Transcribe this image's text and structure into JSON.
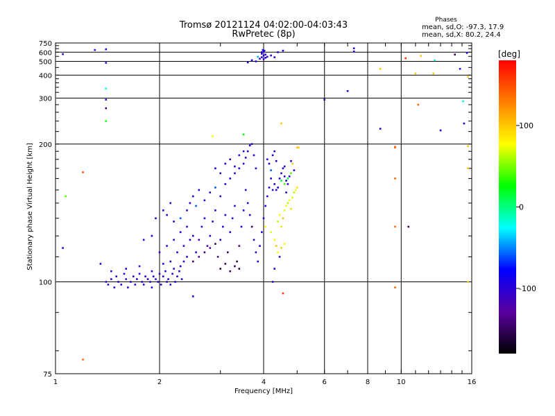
{
  "chart_data": {
    "type": "scatter",
    "title": "Tromsø 20121124 04:02:00-04:03:43",
    "subtitle": "RwPretec (8p)",
    "xlabel": "Frequency [MHz]",
    "ylabel": "Stationary phase Virtual Height [km]",
    "x_scale": "log",
    "y_scale": "reciprocal",
    "xlim": [
      1,
      16
    ],
    "ylim": [
      75,
      750
    ],
    "x_ticks": [
      1,
      2,
      4,
      6,
      8,
      10,
      16
    ],
    "y_ticks": [
      75,
      100,
      200,
      300,
      400,
      500,
      600,
      750
    ],
    "grid": true,
    "legend": {
      "title": "Phases",
      "lines": [
        "mean, sd,O: -97.3, 17.9",
        "mean, sd,X: 80.2, 24.4"
      ],
      "placement": "top-right"
    },
    "colorbar": {
      "label": "[deg]",
      "range": [
        -180,
        180
      ],
      "ticks": [
        100,
        0,
        -100
      ],
      "colors": [
        "#000000",
        "#5a00a0",
        "#0000ff",
        "#00ffff",
        "#00ff00",
        "#ffff00",
        "#ff8000",
        "#ff0000"
      ]
    },
    "points": [
      {
        "f": 1.4,
        "h": 100,
        "p": -110
      },
      {
        "f": 1.42,
        "h": 99,
        "p": -100
      },
      {
        "f": 1.45,
        "h": 101,
        "p": -105
      },
      {
        "f": 1.48,
        "h": 98,
        "p": -95
      },
      {
        "f": 1.5,
        "h": 102,
        "p": -100
      },
      {
        "f": 1.52,
        "h": 100,
        "p": -110
      },
      {
        "f": 1.55,
        "h": 99,
        "p": -90
      },
      {
        "f": 1.58,
        "h": 103,
        "p": -100
      },
      {
        "f": 1.6,
        "h": 101,
        "p": -105
      },
      {
        "f": 1.62,
        "h": 98,
        "p": -100
      },
      {
        "f": 1.65,
        "h": 100,
        "p": -95
      },
      {
        "f": 1.68,
        "h": 102,
        "p": -110
      },
      {
        "f": 1.7,
        "h": 99,
        "p": -100
      },
      {
        "f": 1.72,
        "h": 101,
        "p": -90
      },
      {
        "f": 1.75,
        "h": 103,
        "p": -100
      },
      {
        "f": 1.78,
        "h": 100,
        "p": -105
      },
      {
        "f": 1.8,
        "h": 99,
        "p": -100
      },
      {
        "f": 1.82,
        "h": 102,
        "p": -95
      },
      {
        "f": 1.85,
        "h": 101,
        "p": -110
      },
      {
        "f": 1.88,
        "h": 100,
        "p": -100
      },
      {
        "f": 1.9,
        "h": 98,
        "p": -95
      },
      {
        "f": 1.92,
        "h": 102,
        "p": -100
      },
      {
        "f": 1.95,
        "h": 101,
        "p": -105
      },
      {
        "f": 1.98,
        "h": 100,
        "p": -100
      },
      {
        "f": 2.0,
        "h": 103,
        "p": -110
      },
      {
        "f": 2.02,
        "h": 99,
        "p": -100
      },
      {
        "f": 2.05,
        "h": 102,
        "p": -95
      },
      {
        "f": 2.08,
        "h": 104,
        "p": -100
      },
      {
        "f": 2.1,
        "h": 100,
        "p": -105
      },
      {
        "f": 2.12,
        "h": 101,
        "p": -100
      },
      {
        "f": 2.15,
        "h": 99,
        "p": -90
      },
      {
        "f": 2.18,
        "h": 103,
        "p": -100
      },
      {
        "f": 2.2,
        "h": 105,
        "p": -105
      },
      {
        "f": 2.22,
        "h": 100,
        "p": -100
      },
      {
        "f": 2.25,
        "h": 102,
        "p": -110
      },
      {
        "f": 2.28,
        "h": 104,
        "p": -100
      },
      {
        "f": 2.3,
        "h": 106,
        "p": -95
      },
      {
        "f": 2.32,
        "h": 101,
        "p": -100
      },
      {
        "f": 2.35,
        "h": 108,
        "p": -105
      },
      {
        "f": 2.4,
        "h": 110,
        "p": -100
      },
      {
        "f": 1.45,
        "h": 104,
        "p": -100
      },
      {
        "f": 1.6,
        "h": 105,
        "p": -95
      },
      {
        "f": 1.75,
        "h": 106,
        "p": -105
      },
      {
        "f": 1.9,
        "h": 104,
        "p": -100
      },
      {
        "f": 2.05,
        "h": 107,
        "p": -90
      },
      {
        "f": 2.15,
        "h": 108,
        "p": -100
      },
      {
        "f": 2.25,
        "h": 112,
        "p": -105
      },
      {
        "f": 2.35,
        "h": 115,
        "p": -100
      },
      {
        "f": 2.45,
        "h": 118,
        "p": -95
      },
      {
        "f": 2.5,
        "h": 120,
        "p": -100
      },
      {
        "f": 2.0,
        "h": 112,
        "p": -110
      },
      {
        "f": 2.1,
        "h": 115,
        "p": -100
      },
      {
        "f": 2.2,
        "h": 118,
        "p": -100
      },
      {
        "f": 2.3,
        "h": 122,
        "p": -95
      },
      {
        "f": 2.4,
        "h": 125,
        "p": -105
      },
      {
        "f": 2.55,
        "h": 112,
        "p": -100
      },
      {
        "f": 2.6,
        "h": 118,
        "p": -110
      },
      {
        "f": 2.65,
        "h": 125,
        "p": -100
      },
      {
        "f": 2.7,
        "h": 130,
        "p": -95
      },
      {
        "f": 2.75,
        "h": 115,
        "p": -130
      },
      {
        "f": 2.8,
        "h": 120,
        "p": -100
      },
      {
        "f": 2.85,
        "h": 128,
        "p": -105
      },
      {
        "f": 2.9,
        "h": 135,
        "p": -100
      },
      {
        "f": 2.95,
        "h": 110,
        "p": -140
      },
      {
        "f": 3.0,
        "h": 118,
        "p": -100
      },
      {
        "f": 3.05,
        "h": 125,
        "p": -90
      },
      {
        "f": 3.1,
        "h": 132,
        "p": -100
      },
      {
        "f": 3.15,
        "h": 112,
        "p": -150
      },
      {
        "f": 3.2,
        "h": 122,
        "p": -100
      },
      {
        "f": 3.25,
        "h": 130,
        "p": -105
      },
      {
        "f": 3.3,
        "h": 138,
        "p": -100
      },
      {
        "f": 3.35,
        "h": 108,
        "p": -160
      },
      {
        "f": 3.4,
        "h": 115,
        "p": -140
      },
      {
        "f": 3.45,
        "h": 125,
        "p": -100
      },
      {
        "f": 3.5,
        "h": 135,
        "p": -95
      },
      {
        "f": 2.5,
        "h": 108,
        "p": -150
      },
      {
        "f": 2.6,
        "h": 110,
        "p": -140
      },
      {
        "f": 2.7,
        "h": 112,
        "p": -150
      },
      {
        "f": 2.8,
        "h": 114,
        "p": -130
      },
      {
        "f": 2.9,
        "h": 116,
        "p": -150
      },
      {
        "f": 3.0,
        "h": 105,
        "p": -160
      },
      {
        "f": 3.1,
        "h": 107,
        "p": -150
      },
      {
        "f": 3.2,
        "h": 104,
        "p": -140
      },
      {
        "f": 3.3,
        "h": 106,
        "p": -150
      },
      {
        "f": 3.4,
        "h": 105,
        "p": -160
      },
      {
        "f": 2.4,
        "h": 135,
        "p": -100
      },
      {
        "f": 2.45,
        "h": 140,
        "p": -95
      },
      {
        "f": 2.5,
        "h": 145,
        "p": -100
      },
      {
        "f": 2.55,
        "h": 138,
        "p": -60
      },
      {
        "f": 2.6,
        "h": 150,
        "p": -100
      },
      {
        "f": 2.7,
        "h": 142,
        "p": -105
      },
      {
        "f": 2.8,
        "h": 148,
        "p": -100
      },
      {
        "f": 2.9,
        "h": 152,
        "p": -60
      },
      {
        "f": 3.0,
        "h": 145,
        "p": -100
      },
      {
        "f": 3.1,
        "h": 155,
        "p": -95
      },
      {
        "f": 3.2,
        "h": 160,
        "p": -100
      },
      {
        "f": 3.3,
        "h": 165,
        "p": -105
      },
      {
        "f": 3.4,
        "h": 170,
        "p": -100
      },
      {
        "f": 3.5,
        "h": 175,
        "p": -110
      },
      {
        "f": 3.55,
        "h": 182,
        "p": -100
      },
      {
        "f": 3.6,
        "h": 190,
        "p": -105
      },
      {
        "f": 3.65,
        "h": 198,
        "p": -100
      },
      {
        "f": 3.7,
        "h": 200,
        "p": -110
      },
      {
        "f": 3.75,
        "h": 185,
        "p": -100
      },
      {
        "f": 3.8,
        "h": 170,
        "p": -95
      },
      {
        "f": 3.55,
        "h": 150,
        "p": -100
      },
      {
        "f": 3.6,
        "h": 140,
        "p": -105
      },
      {
        "f": 3.65,
        "h": 132,
        "p": -100
      },
      {
        "f": 3.7,
        "h": 125,
        "p": -150
      },
      {
        "f": 3.75,
        "h": 118,
        "p": -100
      },
      {
        "f": 3.8,
        "h": 112,
        "p": -105
      },
      {
        "f": 3.85,
        "h": 108,
        "p": -100
      },
      {
        "f": 3.9,
        "h": 115,
        "p": -95
      },
      {
        "f": 3.95,
        "h": 122,
        "p": -100
      },
      {
        "f": 4.0,
        "h": 130,
        "p": -105
      },
      {
        "f": 4.05,
        "h": 138,
        "p": -100
      },
      {
        "f": 4.1,
        "h": 145,
        "p": -110
      },
      {
        "f": 4.15,
        "h": 152,
        "p": -100
      },
      {
        "f": 4.2,
        "h": 160,
        "p": -95
      },
      {
        "f": 4.25,
        "h": 150,
        "p": -100
      },
      {
        "f": 2.9,
        "h": 170,
        "p": -100
      },
      {
        "f": 3.0,
        "h": 165,
        "p": -105
      },
      {
        "f": 3.1,
        "h": 175,
        "p": -100
      },
      {
        "f": 3.2,
        "h": 180,
        "p": -110
      },
      {
        "f": 3.3,
        "h": 172,
        "p": -100
      },
      {
        "f": 3.4,
        "h": 185,
        "p": -95
      },
      {
        "f": 3.5,
        "h": 190,
        "p": -100
      },
      {
        "f": 2.3,
        "h": 130,
        "p": -60
      },
      {
        "f": 2.2,
        "h": 128,
        "p": -100
      },
      {
        "f": 2.1,
        "h": 132,
        "p": -105
      },
      {
        "f": 1.9,
        "h": 120,
        "p": -100
      },
      {
        "f": 1.8,
        "h": 118,
        "p": -95
      },
      {
        "f": 1.95,
        "h": 130,
        "p": -100
      },
      {
        "f": 2.05,
        "h": 135,
        "p": -105
      },
      {
        "f": 2.15,
        "h": 140,
        "p": -100
      },
      {
        "f": 4.3,
        "h": 155,
        "p": -100
      },
      {
        "f": 4.35,
        "h": 150,
        "p": -95
      },
      {
        "f": 4.4,
        "h": 152,
        "p": -100
      },
      {
        "f": 4.45,
        "h": 160,
        "p": -105
      },
      {
        "f": 4.5,
        "h": 165,
        "p": -100
      },
      {
        "f": 4.55,
        "h": 170,
        "p": -110
      },
      {
        "f": 4.6,
        "h": 162,
        "p": -100
      },
      {
        "f": 4.65,
        "h": 158,
        "p": -95
      },
      {
        "f": 4.7,
        "h": 155,
        "p": -100
      },
      {
        "f": 4.2,
        "h": 168,
        "p": -60
      },
      {
        "f": 4.1,
        "h": 180,
        "p": -100
      },
      {
        "f": 4.15,
        "h": 175,
        "p": -105
      },
      {
        "f": 4.25,
        "h": 185,
        "p": -100
      },
      {
        "f": 4.3,
        "h": 190,
        "p": -95
      },
      {
        "f": 4.35,
        "h": 178,
        "p": -100
      },
      {
        "f": 4.4,
        "h": 128,
        "p": 60
      },
      {
        "f": 4.45,
        "h": 132,
        "p": 80
      },
      {
        "f": 4.5,
        "h": 125,
        "p": 90
      },
      {
        "f": 4.55,
        "h": 130,
        "p": 100
      },
      {
        "f": 4.6,
        "h": 135,
        "p": 70
      },
      {
        "f": 4.65,
        "h": 138,
        "p": 80
      },
      {
        "f": 4.7,
        "h": 140,
        "p": 60
      },
      {
        "f": 4.75,
        "h": 142,
        "p": 80
      },
      {
        "f": 4.8,
        "h": 136,
        "p": 90
      },
      {
        "f": 4.85,
        "h": 144,
        "p": 70
      },
      {
        "f": 4.9,
        "h": 148,
        "p": 60
      },
      {
        "f": 4.95,
        "h": 150,
        "p": 80
      },
      {
        "f": 5.0,
        "h": 152,
        "p": 90
      },
      {
        "f": 4.3,
        "h": 118,
        "p": 80
      },
      {
        "f": 4.35,
        "h": 115,
        "p": 100
      },
      {
        "f": 4.4,
        "h": 112,
        "p": 80
      },
      {
        "f": 4.5,
        "h": 114,
        "p": 100
      },
      {
        "f": 4.6,
        "h": 116,
        "p": 80
      },
      {
        "f": 4.2,
        "h": 122,
        "p": 70
      },
      {
        "f": 4.05,
        "h": 125,
        "p": 80
      },
      {
        "f": 4.5,
        "h": 158,
        "p": 20
      },
      {
        "f": 4.6,
        "h": 155,
        "p": 40
      },
      {
        "f": 4.7,
        "h": 160,
        "p": 10
      },
      {
        "f": 4.8,
        "h": 165,
        "p": 40
      },
      {
        "f": 4.9,
        "h": 168,
        "p": -100
      },
      {
        "f": 4.25,
        "h": 100,
        "p": -100
      },
      {
        "f": 4.3,
        "h": 105,
        "p": -100
      },
      {
        "f": 4.55,
        "h": 96,
        "p": 160
      },
      {
        "f": 4.45,
        "h": 110,
        "p": -100
      },
      {
        "f": 4.85,
        "h": 175,
        "p": 100
      },
      {
        "f": 5.05,
        "h": 195,
        "p": 100
      },
      {
        "f": 4.8,
        "h": 178,
        "p": -100
      },
      {
        "f": 4.6,
        "h": 172,
        "p": -100
      },
      {
        "f": 4.75,
        "h": 162,
        "p": -100
      },
      {
        "f": 4.65,
        "h": 148,
        "p": -100
      },
      {
        "f": 3.95,
        "h": 600,
        "p": -100
      },
      {
        "f": 4.0,
        "h": 610,
        "p": -90
      },
      {
        "f": 3.95,
        "h": 580,
        "p": -105
      },
      {
        "f": 4.0,
        "h": 560,
        "p": -100
      },
      {
        "f": 3.95,
        "h": 540,
        "p": -100
      },
      {
        "f": 4.05,
        "h": 535,
        "p": -95
      },
      {
        "f": 4.0,
        "h": 520,
        "p": -100
      },
      {
        "f": 4.1,
        "h": 545,
        "p": -105
      },
      {
        "f": 4.05,
        "h": 570,
        "p": -100
      },
      {
        "f": 3.98,
        "h": 630,
        "p": -100
      },
      {
        "f": 4.02,
        "h": 620,
        "p": -95
      },
      {
        "f": 4.2,
        "h": 560,
        "p": -100
      },
      {
        "f": 4.3,
        "h": 540,
        "p": -100
      },
      {
        "f": 4.4,
        "h": 600,
        "p": -105
      },
      {
        "f": 4.55,
        "h": 620,
        "p": -100
      },
      {
        "f": 3.7,
        "h": 510,
        "p": -100
      },
      {
        "f": 3.8,
        "h": 500,
        "p": -100
      },
      {
        "f": 3.6,
        "h": 490,
        "p": -100
      },
      {
        "f": 3.85,
        "h": 545,
        "p": -40
      },
      {
        "f": 3.9,
        "h": 525,
        "p": -100
      },
      {
        "f": 1.05,
        "h": 575,
        "p": -100
      },
      {
        "f": 1.3,
        "h": 630,
        "p": -100
      },
      {
        "f": 1.4,
        "h": 640,
        "p": -100
      },
      {
        "f": 1.4,
        "h": 487,
        "p": -100
      },
      {
        "f": 1.4,
        "h": 335,
        "p": -20
      },
      {
        "f": 1.4,
        "h": 295,
        "p": -100
      },
      {
        "f": 1.4,
        "h": 270,
        "p": -150
      },
      {
        "f": 1.4,
        "h": 240,
        "p": 20
      },
      {
        "f": 1.2,
        "h": 166,
        "p": 150
      },
      {
        "f": 1.07,
        "h": 145,
        "p": 40
      },
      {
        "f": 1.05,
        "h": 114,
        "p": -100
      },
      {
        "f": 1.35,
        "h": 107,
        "p": -100
      },
      {
        "f": 1.2,
        "h": 78,
        "p": 140
      },
      {
        "f": 2.5,
        "h": 95,
        "p": -100
      },
      {
        "f": 3.5,
        "h": 215,
        "p": 20
      },
      {
        "f": 2.85,
        "h": 212,
        "p": 80
      },
      {
        "f": 4.5,
        "h": 235,
        "p": 100
      },
      {
        "f": 5.0,
        "h": 195,
        "p": 100
      },
      {
        "f": 6.0,
        "h": 295,
        "p": -100
      },
      {
        "f": 7.0,
        "h": 325,
        "p": -100
      },
      {
        "f": 7.3,
        "h": 655,
        "p": -100
      },
      {
        "f": 7.3,
        "h": 610,
        "p": -100
      },
      {
        "f": 8.7,
        "h": 225,
        "p": -100
      },
      {
        "f": 8.7,
        "h": 440,
        "p": 100
      },
      {
        "f": 9.6,
        "h": 195,
        "p": 140
      },
      {
        "f": 9.6,
        "h": 160,
        "p": 140
      },
      {
        "f": 9.6,
        "h": 125,
        "p": 140
      },
      {
        "f": 9.6,
        "h": 98,
        "p": 140
      },
      {
        "f": 10.3,
        "h": 530,
        "p": 160
      },
      {
        "f": 10.5,
        "h": 125,
        "p": -150
      },
      {
        "f": 11.0,
        "h": 410,
        "p": 100
      },
      {
        "f": 11.2,
        "h": 280,
        "p": 140
      },
      {
        "f": 11.4,
        "h": 555,
        "p": 100
      },
      {
        "f": 12.4,
        "h": 410,
        "p": 100
      },
      {
        "f": 12.5,
        "h": 510,
        "p": -20
      },
      {
        "f": 13.0,
        "h": 222,
        "p": -100
      },
      {
        "f": 14.3,
        "h": 570,
        "p": -150
      },
      {
        "f": 14.8,
        "h": 440,
        "p": -100
      },
      {
        "f": 15.1,
        "h": 290,
        "p": -20
      },
      {
        "f": 15.2,
        "h": 235,
        "p": -100
      },
      {
        "f": 15.5,
        "h": 590,
        "p": -100
      },
      {
        "f": 15.6,
        "h": 390,
        "p": 100
      },
      {
        "f": 15.6,
        "h": 197,
        "p": 100
      },
      {
        "f": 15.6,
        "h": 170,
        "p": 100
      },
      {
        "f": 15.6,
        "h": 100,
        "p": 100
      },
      {
        "f": 9.6,
        "h": 196,
        "p": 140
      }
    ]
  }
}
